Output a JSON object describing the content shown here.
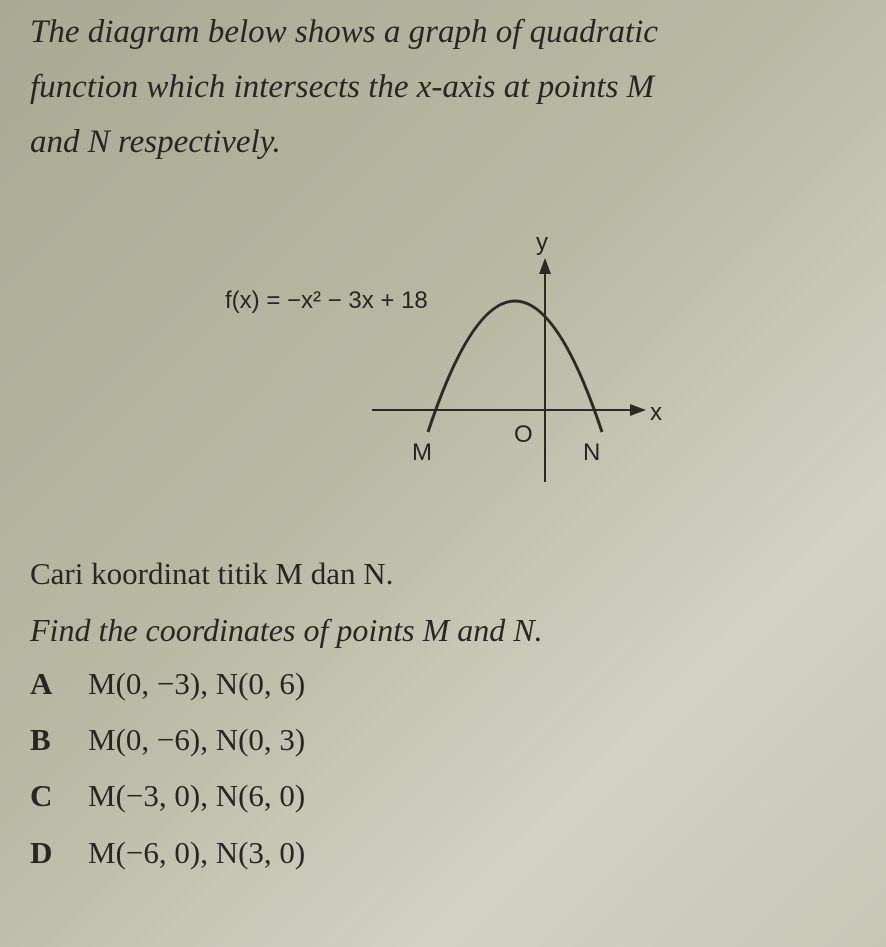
{
  "question": {
    "stem": [
      "The diagram below shows a graph of quadratic",
      "function which intersects the x-axis at points M",
      "and N respectively."
    ]
  },
  "diagram": {
    "function_label": "f(x) = −x² − 3x + 18",
    "y_label": "y",
    "x_label": "x",
    "origin_label": "O",
    "point_m": "M",
    "point_n": "N"
  },
  "prompt_malay": "Cari koordinat titik M dan N.",
  "prompt_english": "Find the coordinates of points M and N.",
  "options": [
    {
      "letter": "A",
      "text": "M(0, −3), N(0, 6)"
    },
    {
      "letter": "B",
      "text": "M(0, −6), N(0, 3)"
    },
    {
      "letter": "C",
      "text": "M(−3, 0), N(6, 0)"
    },
    {
      "letter": "D",
      "text": "M(−6, 0), N(3, 0)"
    }
  ]
}
